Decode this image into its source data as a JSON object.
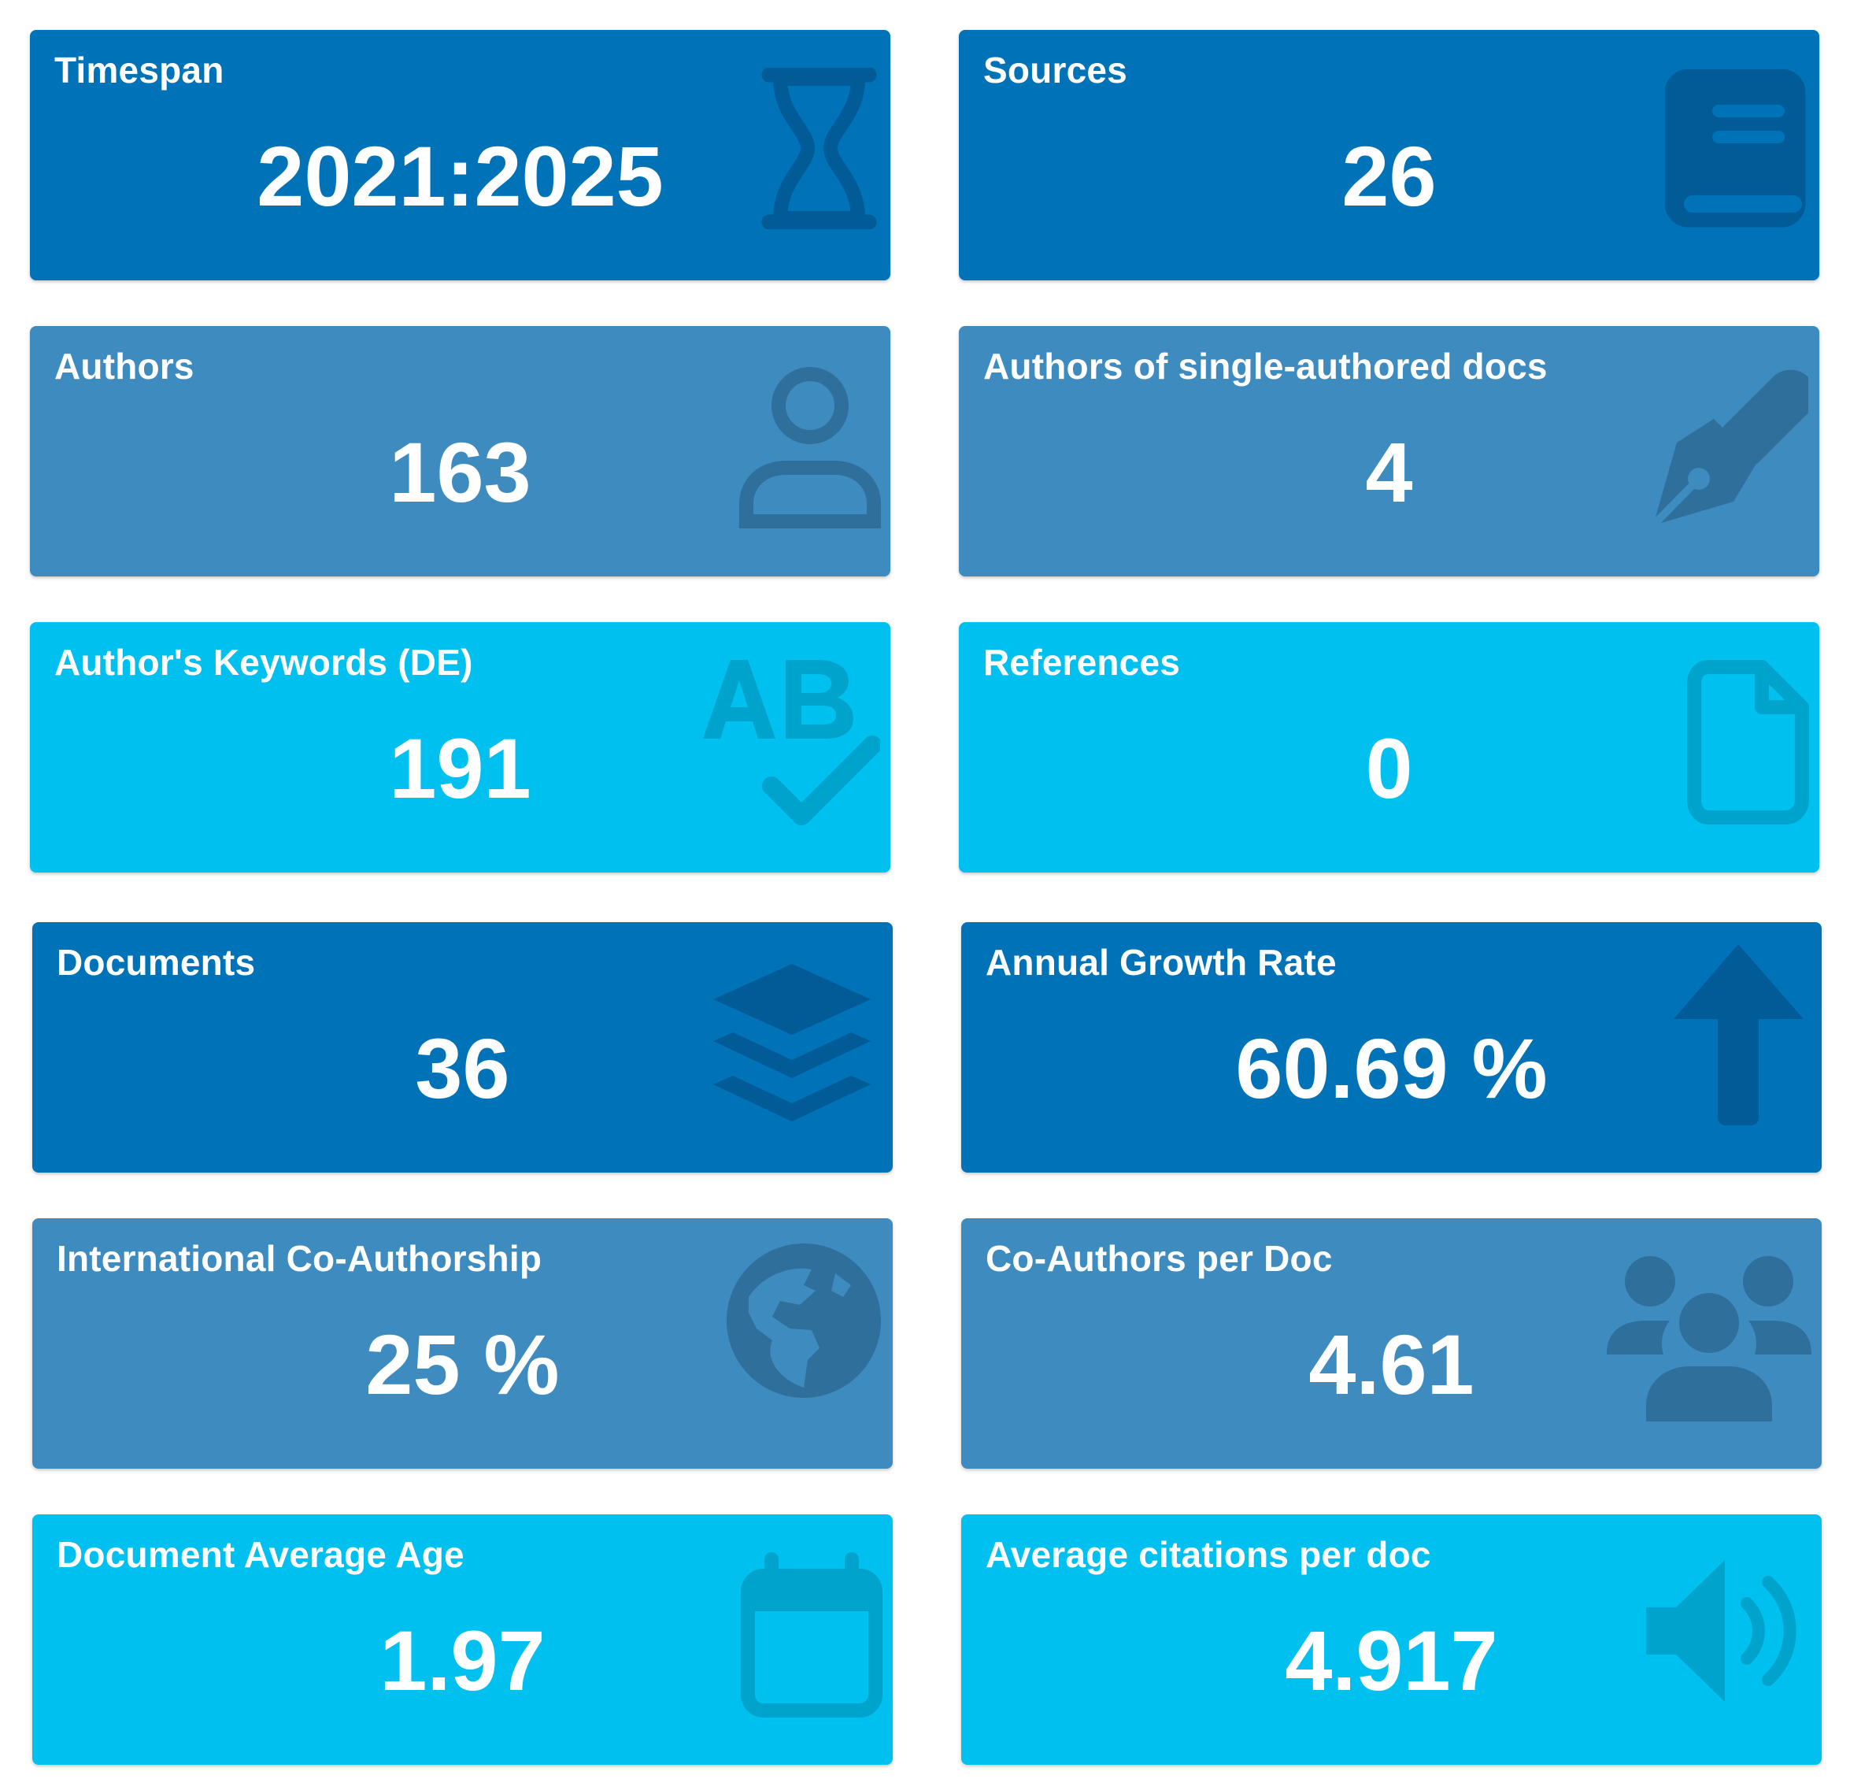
{
  "colors": {
    "dark": "#0072b8",
    "mid": "#3e8bbf",
    "light": "#00c0ef",
    "text": "#ffffff"
  },
  "cards": [
    {
      "title": "Timespan",
      "value": "2021:2025",
      "icon": "hourglass-icon",
      "theme": "dark"
    },
    {
      "title": "Sources",
      "value": "26",
      "icon": "book-icon",
      "theme": "dark"
    },
    {
      "title": "Authors",
      "value": "163",
      "icon": "user-icon",
      "theme": "mid"
    },
    {
      "title": "Authors of single-authored docs",
      "value": "4",
      "icon": "pen-nib-icon",
      "theme": "mid"
    },
    {
      "title": "Author's Keywords (DE)",
      "value": "191",
      "icon": "spell-check-icon",
      "theme": "light"
    },
    {
      "title": "References",
      "value": "0",
      "icon": "file-icon",
      "theme": "light"
    },
    {
      "title": "Documents",
      "value": "36",
      "icon": "layer-group-icon",
      "theme": "dark"
    },
    {
      "title": "Annual Growth Rate",
      "value": "60.69 %",
      "icon": "arrow-up-icon",
      "theme": "dark"
    },
    {
      "title": "International Co-Authorship",
      "value": "25 %",
      "icon": "globe-americas-icon",
      "theme": "mid"
    },
    {
      "title": "Co-Authors per Doc",
      "value": "4.61",
      "icon": "users-icon",
      "theme": "mid"
    },
    {
      "title": "Document Average Age",
      "value": "1.97",
      "icon": "calendar-icon",
      "theme": "light"
    },
    {
      "title": "Average citations per doc",
      "value": "4.917",
      "icon": "volume-up-icon",
      "theme": "light"
    }
  ]
}
